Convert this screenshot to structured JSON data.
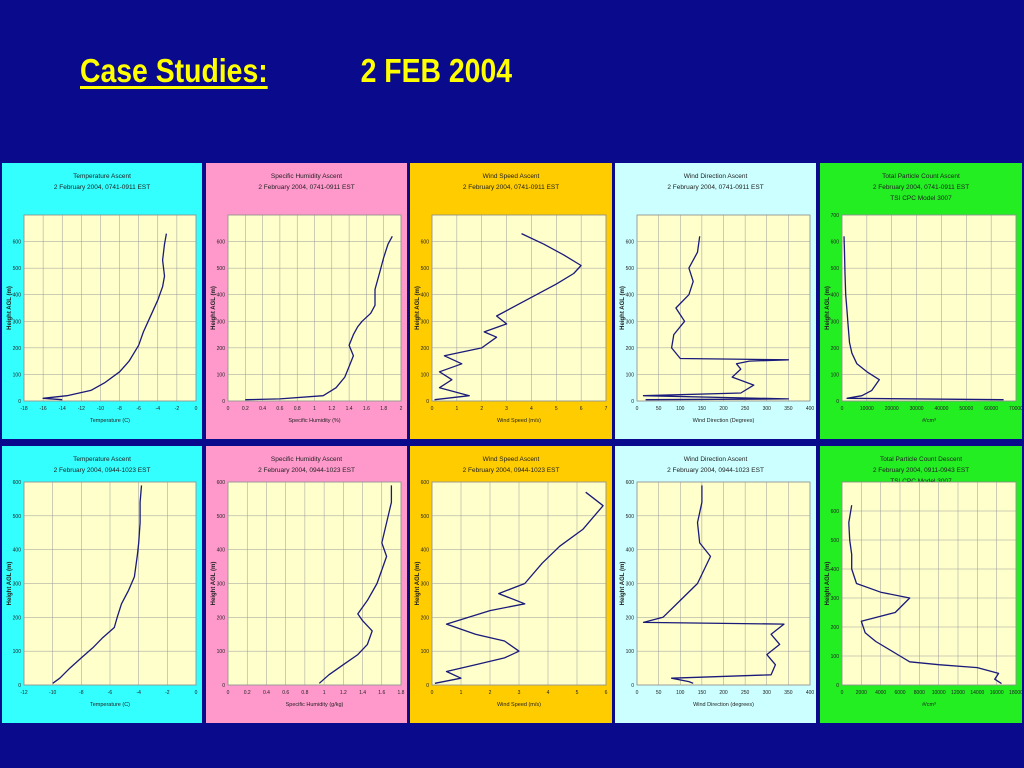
{
  "slide": {
    "title_label": "Case Studies:",
    "title_date": "2 FEB 2004"
  },
  "chart_data": [
    {
      "type": "line",
      "title": "Temperature Ascent",
      "subtitle": "2 February 2004, 0741-0911 EST",
      "bg": "#33ffff",
      "xlabel": "Temperature (C)",
      "ylabel": "Height AGL (m)",
      "xlim": [
        -18,
        0
      ],
      "ylim": [
        0,
        700
      ],
      "xticks": [
        -18,
        -16,
        -14,
        -12,
        -10,
        -8,
        -6,
        -4,
        -2,
        0
      ],
      "xtick_labels": [
        "-18",
        "-16",
        "-14",
        "-12",
        "-10",
        "-8",
        "-6",
        "-4",
        "-2",
        "0"
      ],
      "yticks": [
        0,
        100,
        200,
        300,
        400,
        500,
        600
      ],
      "ytick_labels": [
        "0",
        "100",
        "200",
        "300",
        "400",
        "500",
        "600"
      ],
      "series": [
        {
          "x": [
            -14,
            -16,
            -13.5,
            -11,
            -9.5,
            -8,
            -7,
            -6.5,
            -6,
            -5.5,
            -5,
            -4.5,
            -4,
            -3.5,
            -3.3,
            -3.5,
            -3.3,
            -3.1
          ],
          "y": [
            5,
            10,
            20,
            40,
            70,
            110,
            150,
            180,
            210,
            260,
            300,
            340,
            380,
            430,
            470,
            530,
            590,
            630
          ]
        }
      ]
    },
    {
      "type": "line",
      "title": "Specific Humidity Ascent",
      "subtitle": "2 February 2004, 0741-0911 EST",
      "bg": "#ff99cc",
      "xlabel": "Specific Humidity (%)",
      "ylabel": "Height AGL (m)",
      "xlim": [
        0,
        2
      ],
      "ylim": [
        0,
        700
      ],
      "xticks": [
        0,
        0.2,
        0.4,
        0.6,
        0.8,
        1,
        1.2,
        1.4,
        1.6,
        1.8,
        2
      ],
      "xtick_labels": [
        "0",
        "0.2",
        "0.4",
        "0.6",
        "0.8",
        "1",
        "1.2",
        "1.4",
        "1.6",
        "1.8",
        "2"
      ],
      "yticks": [
        0,
        100,
        200,
        300,
        400,
        500,
        600
      ],
      "ytick_labels": [
        "0",
        "100",
        "200",
        "300",
        "400",
        "500",
        "600"
      ],
      "series": [
        {
          "x": [
            0.2,
            0.6,
            1.1,
            1.25,
            1.35,
            1.4,
            1.45,
            1.4,
            1.45,
            1.5,
            1.55,
            1.65,
            1.7,
            1.7,
            1.75,
            1.8,
            1.85,
            1.9
          ],
          "y": [
            5,
            8,
            20,
            50,
            90,
            130,
            170,
            210,
            250,
            280,
            300,
            330,
            360,
            420,
            480,
            540,
            590,
            620
          ]
        }
      ]
    },
    {
      "type": "line",
      "title": "Wind Speed Ascent",
      "subtitle": "2 February 2004, 0741-0911 EST",
      "bg": "#ffcc00",
      "xlabel": "Wind Speed (m/s)",
      "ylabel": "Height AGL (m)",
      "xlim": [
        0,
        7
      ],
      "ylim": [
        0,
        700
      ],
      "xticks": [
        0,
        1,
        2,
        3,
        4,
        5,
        6,
        7
      ],
      "xtick_labels": [
        "0",
        "1",
        "2",
        "3",
        "4",
        "5",
        "6",
        "7"
      ],
      "yticks": [
        0,
        100,
        200,
        300,
        400,
        500,
        600
      ],
      "ytick_labels": [
        "0",
        "100",
        "200",
        "300",
        "400",
        "500",
        "600"
      ],
      "series": [
        {
          "x": [
            0.1,
            1.5,
            0.3,
            0.8,
            0.3,
            1.2,
            0.5,
            2,
            2.6,
            2.1,
            3,
            2.6,
            3.4,
            4.2,
            5,
            5.7,
            6,
            5.3,
            4.5,
            3.6
          ],
          "y": [
            5,
            20,
            50,
            80,
            110,
            140,
            170,
            200,
            240,
            260,
            290,
            320,
            360,
            400,
            440,
            480,
            510,
            550,
            590,
            630
          ]
        }
      ]
    },
    {
      "type": "line",
      "title": "Wind Direction Ascent",
      "subtitle": "2 February 2004, 0741-0911 EST",
      "bg": "#ccffff",
      "xlabel": "Wind Direction (Degrees)",
      "ylabel": "Height AGL (m)",
      "xlim": [
        0,
        400
      ],
      "ylim": [
        0,
        700
      ],
      "xticks": [
        0,
        50,
        100,
        150,
        200,
        250,
        300,
        350,
        400
      ],
      "xtick_labels": [
        "0",
        "50",
        "100",
        "150",
        "200",
        "250",
        "300",
        "350",
        "400"
      ],
      "yticks": [
        0,
        100,
        200,
        300,
        400,
        500,
        600
      ],
      "ytick_labels": [
        "0",
        "100",
        "200",
        "300",
        "400",
        "500",
        "600"
      ],
      "series": [
        {
          "x": [
            20,
            350,
            15,
            240,
            270,
            220,
            240,
            230,
            260,
            350,
            100,
            80,
            85,
            110,
            90,
            120,
            130,
            120,
            140,
            145
          ],
          "y": [
            5,
            8,
            20,
            30,
            60,
            90,
            120,
            140,
            150,
            155,
            160,
            200,
            250,
            300,
            350,
            400,
            450,
            500,
            560,
            620
          ]
        }
      ]
    },
    {
      "type": "line",
      "title": "Total Particle Count Ascent",
      "subtitle": "2 February 2004, 0741-0911 EST",
      "subtitle2": "TSI CPC Model 3007",
      "bg": "#22ee22",
      "xlabel": "#/cm³",
      "ylabel": "Height AGL (m)",
      "xlim": [
        0,
        70000
      ],
      "ylim": [
        0,
        700
      ],
      "xticks": [
        0,
        10000,
        20000,
        30000,
        40000,
        50000,
        60000,
        70000
      ],
      "xtick_labels": [
        "0",
        "10000",
        "20000",
        "30000",
        "40000",
        "50000",
        "60000",
        "70000"
      ],
      "yticks": [
        0,
        100,
        200,
        300,
        400,
        500,
        600,
        700
      ],
      "ytick_labels": [
        "0",
        "100",
        "200",
        "300",
        "400",
        "500",
        "600",
        "700"
      ],
      "series": [
        {
          "x": [
            65000,
            2000,
            8000,
            12000,
            15000,
            10000,
            6000,
            4000,
            3000,
            2500,
            2000,
            1500,
            1200,
            1000,
            800
          ],
          "y": [
            5,
            10,
            20,
            40,
            80,
            110,
            140,
            180,
            220,
            280,
            340,
            400,
            480,
            560,
            620
          ]
        }
      ]
    },
    {
      "type": "line",
      "title": "Temperature Ascent",
      "subtitle": "2 February 2004, 0944-1023 EST",
      "bg": "#33ffff",
      "xlabel": "Temperature (C)",
      "ylabel": "Height AGL (m)",
      "xlim": [
        -12,
        0
      ],
      "ylim": [
        0,
        600
      ],
      "xticks": [
        -12,
        -10,
        -8,
        -6,
        -4,
        -2,
        0
      ],
      "xtick_labels": [
        "-12",
        "-10",
        "-8",
        "-6",
        "-4",
        "-2",
        "0"
      ],
      "yticks": [
        0,
        100,
        200,
        300,
        400,
        500,
        600
      ],
      "ytick_labels": [
        "0",
        "100",
        "200",
        "300",
        "400",
        "500",
        "600"
      ],
      "series": [
        {
          "x": [
            -10,
            -9.5,
            -8.8,
            -8,
            -7.2,
            -6.5,
            -5.7,
            -5.5,
            -5.2,
            -4.7,
            -4.3,
            -4.1,
            -4.0,
            -3.9,
            -3.9,
            -3.8
          ],
          "y": [
            5,
            20,
            50,
            80,
            110,
            140,
            170,
            200,
            240,
            280,
            320,
            380,
            420,
            480,
            540,
            590
          ]
        }
      ]
    },
    {
      "type": "line",
      "title": "Specific Humidity Ascent",
      "subtitle": "2 February 2004, 0944-1023 EST",
      "bg": "#ff99cc",
      "xlabel": "Specific Humidity (g/kg)",
      "ylabel": "Height AGL (m)",
      "xlim": [
        0,
        1.8
      ],
      "ylim": [
        0,
        600
      ],
      "xticks": [
        0,
        0.2,
        0.4,
        0.6,
        0.8,
        1,
        1.2,
        1.4,
        1.6,
        1.8
      ],
      "xtick_labels": [
        "0",
        "0.2",
        "0.4",
        "0.6",
        "0.8",
        "1",
        "1.2",
        "1.4",
        "1.6",
        "1.8"
      ],
      "yticks": [
        0,
        100,
        200,
        300,
        400,
        500,
        600
      ],
      "ytick_labels": [
        "0",
        "100",
        "200",
        "300",
        "400",
        "500",
        "600"
      ],
      "series": [
        {
          "x": [
            0.95,
            1.05,
            1.2,
            1.35,
            1.45,
            1.5,
            1.4,
            1.35,
            1.45,
            1.55,
            1.6,
            1.65,
            1.6,
            1.65,
            1.7,
            1.7
          ],
          "y": [
            5,
            30,
            60,
            90,
            120,
            160,
            190,
            210,
            250,
            300,
            340,
            380,
            420,
            480,
            540,
            590
          ]
        }
      ]
    },
    {
      "type": "line",
      "title": "Wind Speed Ascent",
      "subtitle": "2 February 2004, 0944-1023 EST",
      "bg": "#ffcc00",
      "xlabel": "Wind Speed (m/s)",
      "ylabel": "Height AGL (m)",
      "xlim": [
        0,
        6
      ],
      "ylim": [
        0,
        600
      ],
      "xticks": [
        0,
        1,
        2,
        3,
        4,
        5,
        6
      ],
      "xtick_labels": [
        "0",
        "1",
        "2",
        "3",
        "4",
        "5",
        "6"
      ],
      "yticks": [
        0,
        100,
        200,
        300,
        400,
        500,
        600
      ],
      "ytick_labels": [
        "0",
        "100",
        "200",
        "300",
        "400",
        "500",
        "600"
      ],
      "series": [
        {
          "x": [
            0.1,
            1,
            0.5,
            1.5,
            2.5,
            3,
            2.5,
            1.5,
            0.5,
            2,
            3.2,
            2.3,
            3.2,
            3.8,
            4.4,
            5.2,
            5.6,
            5.9,
            5.3
          ],
          "y": [
            5,
            20,
            40,
            60,
            80,
            100,
            130,
            150,
            180,
            220,
            240,
            270,
            300,
            360,
            410,
            460,
            500,
            530,
            570
          ]
        }
      ]
    },
    {
      "type": "line",
      "title": "Wind Direction Ascent",
      "subtitle": "2 February 2004, 0944-1023 EST",
      "bg": "#ccffff",
      "xlabel": "Wind Direction (degrees)",
      "ylabel": "Height AGL (m)",
      "xlim": [
        0,
        400
      ],
      "ylim": [
        0,
        600
      ],
      "xticks": [
        0,
        50,
        100,
        150,
        200,
        250,
        300,
        350,
        400
      ],
      "xtick_labels": [
        "0",
        "50",
        "100",
        "150",
        "200",
        "250",
        "300",
        "350",
        "400"
      ],
      "yticks": [
        0,
        100,
        200,
        300,
        400,
        500,
        600
      ],
      "ytick_labels": [
        "0",
        "100",
        "200",
        "300",
        "400",
        "500",
        "600"
      ],
      "series": [
        {
          "x": [
            130,
            120,
            80,
            310,
            320,
            300,
            330,
            310,
            340,
            15,
            60,
            100,
            140,
            170,
            145,
            140,
            150,
            150
          ],
          "y": [
            5,
            10,
            20,
            30,
            60,
            90,
            120,
            150,
            180,
            185,
            200,
            250,
            300,
            380,
            420,
            480,
            540,
            590
          ]
        }
      ]
    },
    {
      "type": "line",
      "title": "Total Particle Count Descent",
      "subtitle": "2 February 2004, 0911-0943 EST",
      "subtitle2": "TSI CPC Model 3007",
      "bg": "#22ee22",
      "xlabel": "#/cm³",
      "ylabel": "Height AGL (m)",
      "xlim": [
        0,
        18000
      ],
      "ylim": [
        0,
        700
      ],
      "xticks": [
        0,
        2000,
        4000,
        6000,
        8000,
        10000,
        12000,
        14000,
        16000,
        18000
      ],
      "xtick_labels": [
        "0",
        "2000",
        "4000",
        "6000",
        "8000",
        "10000",
        "12000",
        "14000",
        "16000",
        "18000"
      ],
      "yticks": [
        0,
        100,
        200,
        300,
        400,
        500,
        600
      ],
      "ytick_labels": [
        "0",
        "100",
        "200",
        "300",
        "400",
        "500",
        "600"
      ],
      "series": [
        {
          "x": [
            16500,
            15800,
            16200,
            14000,
            10000,
            7000,
            6000,
            3500,
            2400,
            2000,
            5500,
            7000,
            4000,
            1500,
            1000,
            1000,
            800,
            700,
            1000
          ],
          "y": [
            5,
            20,
            40,
            60,
            70,
            80,
            100,
            150,
            180,
            220,
            250,
            300,
            320,
            350,
            400,
            450,
            500,
            560,
            620
          ]
        }
      ]
    }
  ]
}
